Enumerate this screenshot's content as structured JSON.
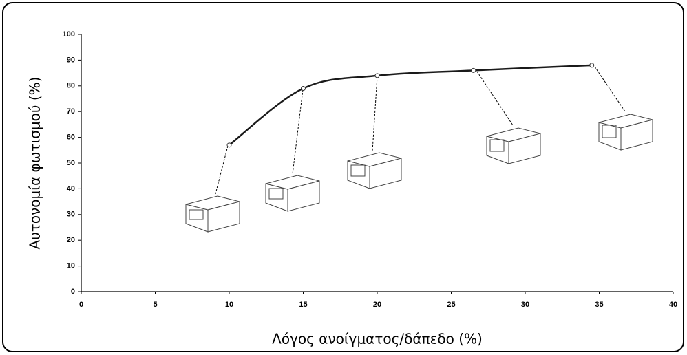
{
  "chart_data": {
    "type": "line",
    "x_label": "Λόγος ανοίγματος/δάπεδο (%)",
    "y_label": "Αυτονομία φωτισμού (%)",
    "x": [
      10,
      15,
      20,
      26.5,
      34.5
    ],
    "series": [
      {
        "color": "#1a1a1a",
        "values": [
          57,
          79,
          84,
          86,
          88
        ]
      }
    ],
    "xlim": [
      0,
      40
    ],
    "xticks": [
      0,
      5,
      10,
      15,
      20,
      25,
      30,
      35,
      40
    ],
    "ylim": [
      0,
      100
    ],
    "yticks": [
      0,
      10,
      20,
      30,
      40,
      50,
      60,
      70,
      80,
      90,
      100
    ]
  }
}
